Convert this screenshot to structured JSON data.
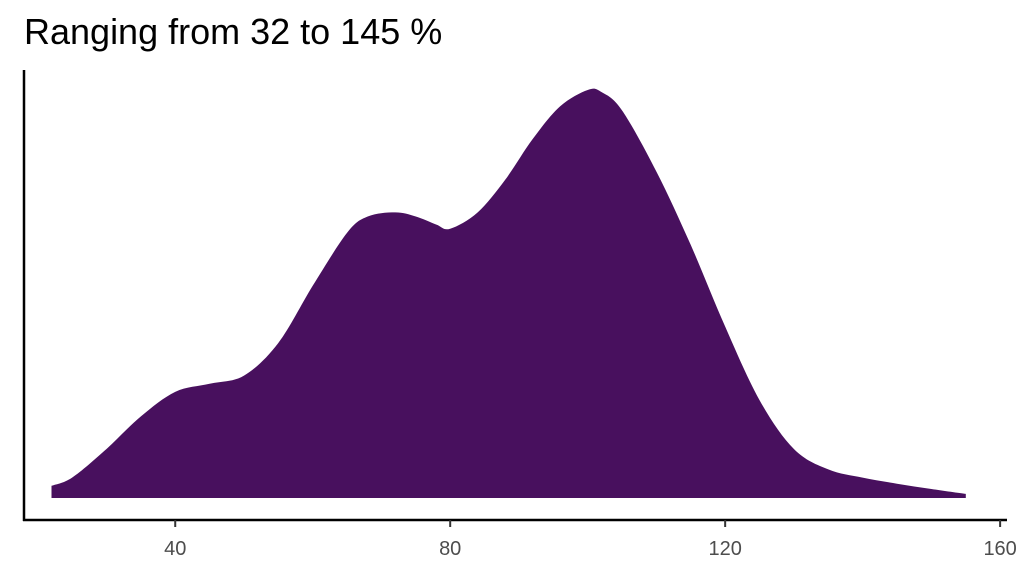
{
  "chart_data": {
    "type": "area",
    "title": "Ranging from 32 to 145 %",
    "xlabel": "",
    "ylabel": "",
    "xlim": [
      18,
      161
    ],
    "ylim": [
      0,
      1
    ],
    "x_ticks": [
      40,
      80,
      120,
      160
    ],
    "x_tick_labels": [
      "40",
      "80",
      "120",
      "160"
    ],
    "y_axis_ticks_shown": false,
    "grid": false,
    "legend": "none",
    "fill_color": "#48105e",
    "series": [
      {
        "x": [
          22,
          25,
          30,
          35,
          40,
          45,
          50,
          55,
          60,
          65,
          68,
          72,
          75,
          78,
          80,
          84,
          88,
          92,
          96,
          100,
          102,
          105,
          110,
          115,
          120,
          125,
          130,
          135,
          140,
          145,
          150,
          155
        ],
        "values": [
          0.03,
          0.05,
          0.12,
          0.2,
          0.26,
          0.28,
          0.3,
          0.38,
          0.52,
          0.65,
          0.69,
          0.7,
          0.69,
          0.67,
          0.66,
          0.7,
          0.78,
          0.88,
          0.96,
          1.0,
          0.995,
          0.95,
          0.8,
          0.62,
          0.42,
          0.24,
          0.12,
          0.07,
          0.05,
          0.035,
          0.022,
          0.01
        ]
      }
    ]
  }
}
